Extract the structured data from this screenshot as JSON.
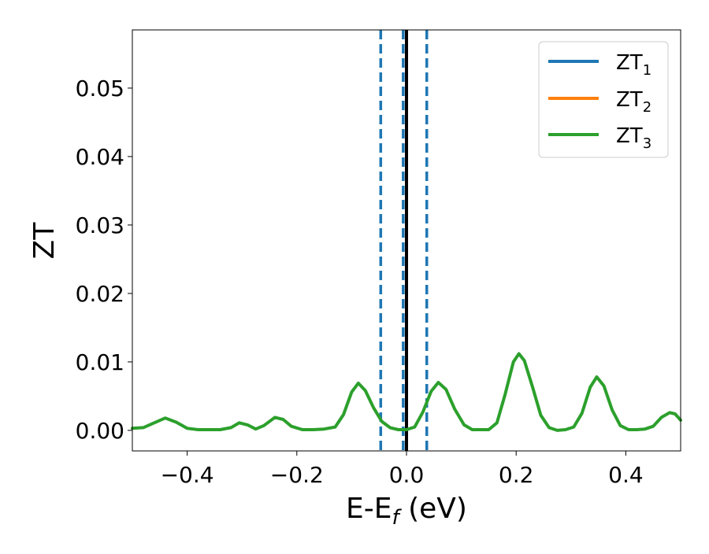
{
  "chart_data": {
    "type": "line",
    "xlabel": {
      "main": "E-E",
      "sub": "f",
      "suffix": " (eV)"
    },
    "ylabel": "ZT",
    "xlim": [
      -0.5,
      0.5
    ],
    "ylim": [
      -0.003,
      0.0585
    ],
    "xticks": [
      -0.4,
      -0.2,
      0.0,
      0.2,
      0.4
    ],
    "xtick_labels": [
      "−0.4",
      "−0.2",
      "0.0",
      "0.2",
      "0.4"
    ],
    "yticks": [
      0.0,
      0.01,
      0.02,
      0.03,
      0.04,
      0.05
    ],
    "ytick_labels": [
      "0.00",
      "0.01",
      "0.02",
      "0.03",
      "0.04",
      "0.05"
    ],
    "grid": false,
    "legend_position": "top-right",
    "legend": [
      {
        "base": "ZT",
        "sub": "1",
        "color": "#1f77b4"
      },
      {
        "base": "ZT",
        "sub": "2",
        "color": "#ff7f0e"
      },
      {
        "base": "ZT",
        "sub": "3",
        "color": "#2ca02c"
      }
    ],
    "vlines": [
      {
        "x": -0.047,
        "color": "#1f77b4",
        "style": "dashed"
      },
      {
        "x": -0.006,
        "color": "#1f77b4",
        "style": "dashed"
      },
      {
        "x": 0.037,
        "color": "#1f77b4",
        "style": "dashed"
      },
      {
        "x": 0.0,
        "color": "#000000",
        "style": "solid"
      }
    ],
    "series": [
      {
        "color": "#2ca02c",
        "points": [
          [
            -0.5,
            0.0003
          ],
          [
            -0.48,
            0.0004
          ],
          [
            -0.46,
            0.0011
          ],
          [
            -0.44,
            0.0018
          ],
          [
            -0.42,
            0.0012
          ],
          [
            -0.4,
            0.0003
          ],
          [
            -0.38,
            0.0001
          ],
          [
            -0.36,
            0.0001
          ],
          [
            -0.34,
            0.0001
          ],
          [
            -0.32,
            0.0004
          ],
          [
            -0.305,
            0.0011
          ],
          [
            -0.29,
            0.0008
          ],
          [
            -0.275,
            0.0002
          ],
          [
            -0.26,
            0.0007
          ],
          [
            -0.24,
            0.0019
          ],
          [
            -0.225,
            0.0016
          ],
          [
            -0.21,
            0.0006
          ],
          [
            -0.19,
            0.0001
          ],
          [
            -0.17,
            0.0001
          ],
          [
            -0.15,
            0.0002
          ],
          [
            -0.13,
            0.0005
          ],
          [
            -0.115,
            0.0023
          ],
          [
            -0.1,
            0.0056
          ],
          [
            -0.088,
            0.0069
          ],
          [
            -0.075,
            0.0058
          ],
          [
            -0.06,
            0.0033
          ],
          [
            -0.045,
            0.0013
          ],
          [
            -0.03,
            0.0004
          ],
          [
            -0.015,
            0.0001
          ],
          [
            0.0,
            0.0001
          ],
          [
            0.015,
            0.0005
          ],
          [
            0.03,
            0.0027
          ],
          [
            0.045,
            0.0057
          ],
          [
            0.058,
            0.007
          ],
          [
            0.072,
            0.006
          ],
          [
            0.088,
            0.0031
          ],
          [
            0.105,
            0.0008
          ],
          [
            0.12,
            0.0001
          ],
          [
            0.135,
            0.0001
          ],
          [
            0.15,
            0.0001
          ],
          [
            0.165,
            0.0011
          ],
          [
            0.18,
            0.0053
          ],
          [
            0.195,
            0.01
          ],
          [
            0.205,
            0.0112
          ],
          [
            0.215,
            0.0102
          ],
          [
            0.23,
            0.0063
          ],
          [
            0.245,
            0.0022
          ],
          [
            0.26,
            0.0004
          ],
          [
            0.275,
            0.0
          ],
          [
            0.29,
            0.0001
          ],
          [
            0.305,
            0.0005
          ],
          [
            0.32,
            0.0025
          ],
          [
            0.335,
            0.0063
          ],
          [
            0.347,
            0.0078
          ],
          [
            0.36,
            0.0065
          ],
          [
            0.375,
            0.003
          ],
          [
            0.39,
            0.0007
          ],
          [
            0.405,
            0.0001
          ],
          [
            0.42,
            0.0001
          ],
          [
            0.435,
            0.0002
          ],
          [
            0.45,
            0.0006
          ],
          [
            0.465,
            0.0019
          ],
          [
            0.48,
            0.0026
          ],
          [
            0.49,
            0.0024
          ],
          [
            0.5,
            0.0015
          ]
        ]
      }
    ]
  }
}
